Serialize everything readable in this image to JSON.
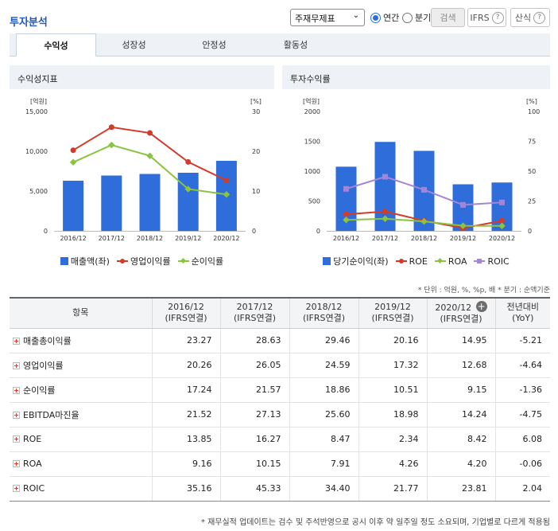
{
  "header": {
    "title": "투자분석",
    "select_value": "주재무제표",
    "radio_annual": "연간",
    "radio_quarter": "분기",
    "search_btn": "검색",
    "ifrs_btn": "IFRS",
    "formula_btn": "산식",
    "help_glyph": "?"
  },
  "tabs": [
    "수익성",
    "성장성",
    "안정성",
    "활동성"
  ],
  "panels": {
    "left_title": "수익성지표",
    "right_title": "투자수익률"
  },
  "chart_data": [
    {
      "type": "bar",
      "title": "수익성지표",
      "categories": [
        "2016/12",
        "2017/12",
        "2018/12",
        "2019/12",
        "2020/12"
      ],
      "left_axis": {
        "unit": "[억원]",
        "range": [
          0,
          15000
        ],
        "ticks": [
          "15,000",
          "10,000",
          "5,000",
          "0"
        ]
      },
      "right_axis": {
        "unit": "[%]",
        "range": [
          0,
          30
        ],
        "ticks": [
          "30",
          "20",
          "10",
          "0"
        ]
      },
      "series": [
        {
          "name": "매출액(좌)",
          "kind": "bar",
          "axis": "left",
          "color": "#2f6ddb",
          "values": [
            6300,
            6950,
            7150,
            7300,
            8800
          ]
        },
        {
          "name": "영업이익률",
          "kind": "line",
          "axis": "right",
          "color": "#d23b2a",
          "marker": "circle",
          "values": [
            20.26,
            26.05,
            24.59,
            17.32,
            12.68
          ]
        },
        {
          "name": "순이익률",
          "kind": "line",
          "axis": "right",
          "color": "#8ac43f",
          "marker": "diamond",
          "values": [
            17.24,
            21.57,
            18.86,
            10.51,
            9.15
          ]
        }
      ]
    },
    {
      "type": "bar",
      "title": "투자수익률",
      "categories": [
        "2016/12",
        "2017/12",
        "2018/12",
        "2019/12",
        "2020/12"
      ],
      "left_axis": {
        "unit": "[억원]",
        "range": [
          0,
          2000
        ],
        "ticks": [
          "2000",
          "1500",
          "1000",
          "500",
          "0"
        ]
      },
      "right_axis": {
        "unit": "[%]",
        "range": [
          0,
          100
        ],
        "ticks": [
          "100",
          "75",
          "50",
          "25",
          "0"
        ]
      },
      "series": [
        {
          "name": "당기순이익(좌)",
          "kind": "bar",
          "axis": "left",
          "color": "#2f6ddb",
          "values": [
            1075,
            1490,
            1340,
            780,
            810
          ]
        },
        {
          "name": "ROE",
          "kind": "line",
          "axis": "right",
          "color": "#d23b2a",
          "marker": "circle",
          "values": [
            13.85,
            16.27,
            8.47,
            2.34,
            8.42
          ]
        },
        {
          "name": "ROA",
          "kind": "line",
          "axis": "right",
          "color": "#8ac43f",
          "marker": "diamond",
          "values": [
            9.16,
            10.15,
            7.91,
            4.26,
            4.2
          ]
        },
        {
          "name": "ROIC",
          "kind": "line",
          "axis": "right",
          "color": "#a385d8",
          "marker": "square",
          "values": [
            35.16,
            45.33,
            34.4,
            21.77,
            23.81
          ]
        }
      ]
    }
  ],
  "note_top": "* 단위 : 억원, %, %p, 배  * 분기 : 순액기준",
  "table": {
    "header_item": "항목",
    "columns": [
      {
        "period": "2016/12",
        "basis": "(IFRS연결)"
      },
      {
        "period": "2017/12",
        "basis": "(IFRS연결)"
      },
      {
        "period": "2018/12",
        "basis": "(IFRS연결)"
      },
      {
        "period": "2019/12",
        "basis": "(IFRS연결)"
      },
      {
        "period": "2020/12",
        "basis": "(IFRS연결)"
      }
    ],
    "plus_glyph": "+",
    "yoy_label1": "전년대비",
    "yoy_label2": "(YoY)",
    "rows": [
      {
        "label": "매출총이익률",
        "values": [
          "23.27",
          "28.63",
          "29.46",
          "20.16",
          "14.95"
        ],
        "yoy": "-5.21"
      },
      {
        "label": "영업이익률",
        "values": [
          "20.26",
          "26.05",
          "24.59",
          "17.32",
          "12.68"
        ],
        "yoy": "-4.64"
      },
      {
        "label": "순이익률",
        "values": [
          "17.24",
          "21.57",
          "18.86",
          "10.51",
          "9.15"
        ],
        "yoy": "-1.36"
      },
      {
        "label": "EBITDA마진율",
        "values": [
          "21.52",
          "27.13",
          "25.60",
          "18.98",
          "14.24"
        ],
        "yoy": "-4.75"
      },
      {
        "label": "ROE",
        "values": [
          "13.85",
          "16.27",
          "8.47",
          "2.34",
          "8.42"
        ],
        "yoy": "6.08"
      },
      {
        "label": "ROA",
        "values": [
          "9.16",
          "10.15",
          "7.91",
          "4.26",
          "4.20"
        ],
        "yoy": "-0.06"
      },
      {
        "label": "ROIC",
        "values": [
          "35.16",
          "45.33",
          "34.40",
          "21.77",
          "23.81"
        ],
        "yoy": "2.04"
      }
    ]
  },
  "footnote": "* 재무실적 업데이트는 검수 및 주석반영으로 공시 이후 약 일주일 정도 소요되며, 기업별로 다르게 적용됨",
  "colors": {
    "accent": "#2358b6",
    "bar": "#2f6ddb",
    "negative": "#e0231c"
  }
}
